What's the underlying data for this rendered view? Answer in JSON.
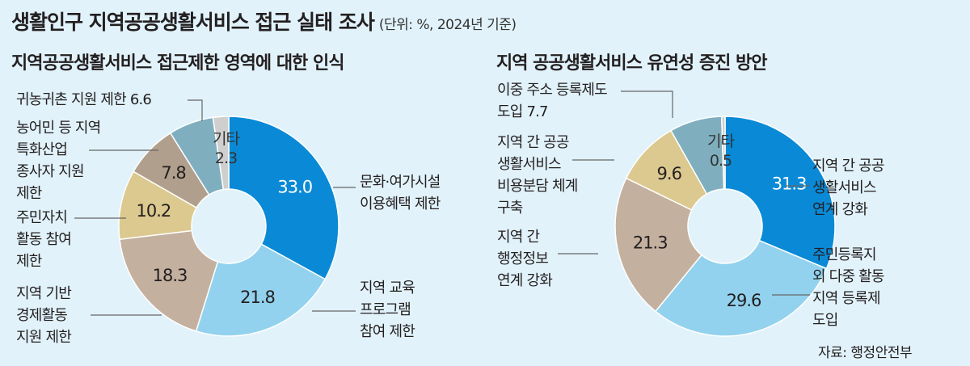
{
  "title": "생활인구 지역공공생활서비스 접근 실태 조사",
  "unit": "(단위: %, 2024년 기준)",
  "source": "자료: 행정안전부",
  "chart_data": [
    {
      "type": "pie",
      "title": "지역공공생활서비스 접근제한 영역에 대한 인식",
      "slices": [
        {
          "label": "문화·여가시설 이용혜택 제한",
          "value": 33.0,
          "color": "#0a8ad6",
          "text": "33.0",
          "textColor": "#ffffff"
        },
        {
          "label": "지역 교육 프로그램 참여 제한",
          "value": 21.8,
          "color": "#92d2ee",
          "text": "21.8",
          "textColor": "#231f20"
        },
        {
          "label": "지역 기반 경제활동 지원 제한",
          "value": 18.3,
          "color": "#c4b09f",
          "text": "18.3",
          "textColor": "#231f20"
        },
        {
          "label": "주민자치 활동 참여 제한",
          "value": 10.2,
          "color": "#dcc98f",
          "text": "10.2",
          "textColor": "#231f20"
        },
        {
          "label": "농어민 등 지역 특화산업 종사자 지원 제한",
          "value": 7.8,
          "color": "#b09f8c",
          "text": "7.8",
          "textColor": "#231f20"
        },
        {
          "label": "귀농귀촌 지원 제한",
          "value": 6.6,
          "color": "#7fafbf",
          "text": "",
          "textColor": "#231f20"
        },
        {
          "label": "기타",
          "value": 2.3,
          "color": "#cfcfcf",
          "text": "",
          "textColor": "#231f20"
        }
      ]
    },
    {
      "type": "pie",
      "title": "지역 공공생활서비스 유연성 증진 방안",
      "slices": [
        {
          "label": "지역 간 공공생활서비스 연계 강화",
          "value": 31.3,
          "color": "#0a8ad6",
          "text": "31.3",
          "textColor": "#ffffff"
        },
        {
          "label": "주민등록지 외 다중 활동 지역 등록제 도입",
          "value": 29.6,
          "color": "#92d2ee",
          "text": "29.6",
          "textColor": "#231f20"
        },
        {
          "label": "지역 간 행정정보 연계 강화",
          "value": 21.3,
          "color": "#c4b09f",
          "text": "21.3",
          "textColor": "#231f20"
        },
        {
          "label": "지역 간 공공생활서비스 비용분담 체계 구축",
          "value": 9.6,
          "color": "#dcc98f",
          "text": "9.6",
          "textColor": "#231f20"
        },
        {
          "label": "이중 주소 등록제도 도입",
          "value": 7.7,
          "color": "#7fafbf",
          "text": "",
          "textColor": "#231f20"
        },
        {
          "label": "기타",
          "value": 0.5,
          "color": "#cfcfcf",
          "text": "",
          "textColor": "#231f20"
        }
      ]
    }
  ],
  "left": {
    "l1": [
      "귀농귀촌 지원 제한 6.6"
    ],
    "l2": [
      "농어민 등 지역",
      "특화산업",
      "종사자 지원",
      "제한"
    ],
    "l3": [
      "주민자치",
      "활동 참여",
      "제한"
    ],
    "l4": [
      "지역 기반",
      "경제활동",
      "지원 제한"
    ],
    "r1": [
      "문화·여가시설",
      "이용혜택 제한"
    ],
    "r2": [
      "지역 교육",
      "프로그램",
      "참여 제한"
    ],
    "etc": [
      "기타",
      "2.3"
    ]
  },
  "right": {
    "l1": [
      "이중 주소 등록제도",
      "도입 7.7"
    ],
    "l2": [
      "지역 간 공공",
      "생활서비스",
      "비용분담 체계",
      "구축"
    ],
    "l3": [
      "지역 간",
      "행정정보",
      "연계 강화"
    ],
    "r1": [
      "지역 간 공공",
      "생활서비스",
      "연계 강화"
    ],
    "r2": [
      "주민등록지",
      "외 다중 활동",
      "지역 등록제",
      "도입"
    ],
    "etc": [
      "기타",
      "0.5"
    ]
  }
}
